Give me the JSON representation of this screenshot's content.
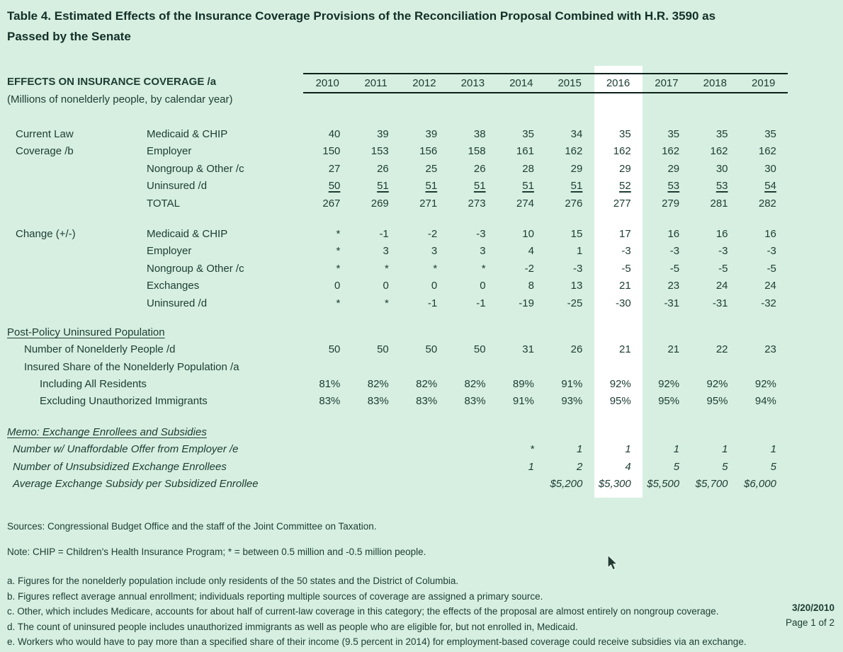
{
  "page": {
    "title_lines": [
      "Table 4. Estimated Effects of the Insurance Coverage Provisions of the Reconciliation Proposal Combined with H.R. 3590 as",
      "Passed by the Senate"
    ],
    "date": "3/20/2010",
    "page_indicator": "Page 1 of 2",
    "colors": {
      "background": "#d6efe1",
      "text": "#1d3c33",
      "rule": "#0d211b",
      "highlight_column": "#ffffff"
    }
  },
  "table": {
    "stub_header": "EFFECTS ON INSURANCE COVERAGE /a",
    "stub_subheader": "(Millions of nonelderly people, by calendar year)",
    "years": [
      "2010",
      "2011",
      "2012",
      "2013",
      "2014",
      "2015",
      "2016",
      "2017",
      "2018",
      "2019"
    ],
    "highlighted_year": "2016",
    "sections": [
      {
        "name": "current-law-coverage",
        "rows": [
          {
            "group": "Current Law",
            "label": "Medicaid & CHIP",
            "values": [
              "40",
              "39",
              "39",
              "38",
              "35",
              "34",
              "35",
              "35",
              "35",
              "35"
            ]
          },
          {
            "group": "Coverage /b",
            "label": "Employer",
            "values": [
              "150",
              "153",
              "156",
              "158",
              "161",
              "162",
              "162",
              "162",
              "162",
              "162"
            ]
          },
          {
            "group": "",
            "label": "Nongroup & Other /c",
            "values": [
              "27",
              "26",
              "25",
              "26",
              "28",
              "29",
              "29",
              "29",
              "30",
              "30"
            ]
          },
          {
            "group": "",
            "label": "Uninsured /d",
            "values": [
              "50",
              "51",
              "51",
              "51",
              "51",
              "51",
              "52",
              "53",
              "53",
              "54"
            ],
            "underline_values": true
          },
          {
            "group": "",
            "label": "TOTAL",
            "values": [
              "267",
              "269",
              "271",
              "273",
              "274",
              "276",
              "277",
              "279",
              "281",
              "282"
            ]
          }
        ]
      },
      {
        "name": "change",
        "rows": [
          {
            "group": "Change (+/-)",
            "label": "Medicaid & CHIP",
            "values": [
              "*",
              "-1",
              "-2",
              "-3",
              "10",
              "15",
              "17",
              "16",
              "16",
              "16"
            ]
          },
          {
            "group": "",
            "label": "Employer",
            "values": [
              "*",
              "3",
              "3",
              "3",
              "4",
              "1",
              "-3",
              "-3",
              "-3",
              "-3"
            ]
          },
          {
            "group": "",
            "label": "Nongroup & Other /c",
            "values": [
              "*",
              "*",
              "*",
              "*",
              "-2",
              "-3",
              "-5",
              "-5",
              "-5",
              "-5"
            ]
          },
          {
            "group": "",
            "label": "Exchanges",
            "values": [
              "0",
              "0",
              "0",
              "0",
              "8",
              "13",
              "21",
              "23",
              "24",
              "24"
            ]
          },
          {
            "group": "",
            "label": "Uninsured /d",
            "values": [
              "*",
              "*",
              "-1",
              "-1",
              "-19",
              "-25",
              "-30",
              "-31",
              "-31",
              "-32"
            ]
          }
        ]
      },
      {
        "name": "post-policy-uninsured-population",
        "heading": "Post-Policy Uninsured Population",
        "heading_style": "underline",
        "rows": [
          {
            "label": "Number of Nonelderly People /d",
            "indent": 1,
            "values": [
              "50",
              "50",
              "50",
              "50",
              "31",
              "26",
              "21",
              "21",
              "22",
              "23"
            ]
          },
          {
            "label": "Insured Share of the Nonelderly Population /a",
            "indent": 1,
            "values": [
              "",
              "",
              "",
              "",
              "",
              "",
              "",
              "",
              "",
              ""
            ]
          },
          {
            "label": "Including All Residents",
            "indent": 2,
            "values": [
              "81%",
              "82%",
              "82%",
              "82%",
              "89%",
              "91%",
              "92%",
              "92%",
              "92%",
              "92%"
            ]
          },
          {
            "label": "Excluding Unauthorized Immigrants",
            "indent": 2,
            "values": [
              "83%",
              "83%",
              "83%",
              "83%",
              "91%",
              "93%",
              "95%",
              "95%",
              "95%",
              "94%"
            ]
          }
        ]
      },
      {
        "name": "memo-exchange-enrollees-and-subsidies",
        "heading": "Memo: Exchange Enrollees and Subsidies",
        "heading_style": "italic-underline",
        "italic": true,
        "rows": [
          {
            "label": "Number w/ Unaffordable Offer from Employer /e",
            "indent": 3,
            "values": [
              "",
              "",
              "",
              "",
              "*",
              "1",
              "1",
              "1",
              "1",
              "1"
            ]
          },
          {
            "label": "Number of Unsubsidized Exchange Enrollees",
            "indent": 3,
            "values": [
              "",
              "",
              "",
              "",
              "1",
              "2",
              "4",
              "5",
              "5",
              "5"
            ]
          },
          {
            "label": "Average Exchange Subsidy per Subsidized Enrollee",
            "indent": 3,
            "values": [
              "",
              "",
              "",
              "",
              "",
              "$5,200",
              "$5,300",
              "$5,500",
              "$5,700",
              "$6,000"
            ]
          }
        ]
      }
    ]
  },
  "notes": {
    "sources": "Sources: Congressional Budget Office and the staff of the Joint Committee on Taxation.",
    "note": "Note: CHIP = Children's Health Insurance Program; * = between 0.5 million and -0.5 million people."
  },
  "footnotes": [
    "a. Figures for the nonelderly population include only residents of the 50 states and the District of Columbia.",
    "b. Figures reflect average annual enrollment; individuals reporting multiple sources of coverage are assigned a primary source.",
    "c. Other, which includes Medicare, accounts for about half of current-law coverage in this category; the effects of the proposal are almost entirely on nongroup coverage.",
    "d. The count of uninsured people includes unauthorized immigrants as well as people who are eligible for, but not enrolled in, Medicaid.",
    "e. Workers who would have to pay more than a specified share of their income (9.5 percent in 2014) for employment-based coverage could receive subsidies via an exchange."
  ]
}
